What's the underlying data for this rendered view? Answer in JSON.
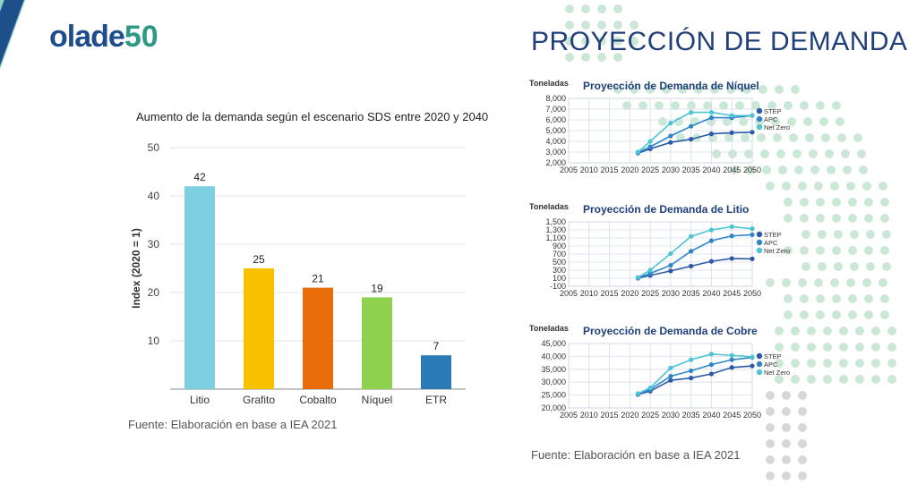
{
  "page": {
    "title": "PROYECCIÓN DE DEMANDA",
    "logo_text": "olade",
    "logo_anniv": "50",
    "source_left": "Fuente: Elaboración en base a IEA 2021",
    "source_right": "Fuente: Elaboración en base a IEA 2021",
    "colors": {
      "title": "#1f3f7a",
      "stripe_teal": "#8fd0c6",
      "stripe_blue": "#1f4f8a",
      "dots": "#b9e0c8"
    }
  },
  "chart_data": [
    {
      "type": "bar",
      "title": "Aumento de la demanda según el escenario SDS entre 2020 y 2040",
      "ylabel": "Index (2020 = 1)",
      "xlabel": "",
      "categories": [
        "Litio",
        "Grafito",
        "Cobalto",
        "Níquel",
        "ETR"
      ],
      "values": [
        42,
        25,
        21,
        19,
        7
      ],
      "data_labels": [
        "42",
        "25",
        "21",
        "19",
        "7"
      ],
      "colors": [
        "#7ecfe0",
        "#f7c100",
        "#e86c0a",
        "#8fd14f",
        "#2a7bb5"
      ],
      "ylim": [
        0,
        50
      ],
      "yticks": [
        "10",
        "20",
        "30",
        "40",
        "50"
      ],
      "grid": true
    },
    {
      "type": "line",
      "title": "Proyección de Demanda de Níquel",
      "ylabel": "Toneladas",
      "x": [
        2022,
        2025,
        2030,
        2035,
        2040,
        2045,
        2050
      ],
      "xticks": [
        "2005",
        "2010",
        "2015",
        "2020",
        "2025",
        "2030",
        "2035",
        "2040",
        "2045",
        "2050"
      ],
      "ylim": [
        2000,
        8000
      ],
      "yticks": [
        "2,000",
        "3,000",
        "4,000",
        "5,000",
        "6,000",
        "7,000",
        "8,000"
      ],
      "legend_position": "right",
      "series": [
        {
          "name": "STEP",
          "color": "#2a5aa8",
          "values": [
            2900,
            3300,
            3900,
            4200,
            4700,
            4800,
            4850
          ]
        },
        {
          "name": "APC",
          "color": "#2e86c9",
          "values": [
            2950,
            3500,
            4500,
            5400,
            6200,
            6200,
            6400
          ]
        },
        {
          "name": "Net Zero",
          "color": "#4cc4d4",
          "values": [
            3000,
            4000,
            5700,
            6700,
            6700,
            6400,
            6400
          ]
        }
      ]
    },
    {
      "type": "line",
      "title": "Proyección de Demanda de Litio",
      "ylabel": "Toneladas",
      "x": [
        2022,
        2025,
        2030,
        2035,
        2040,
        2045,
        2050
      ],
      "xticks": [
        "2005",
        "2010",
        "2015",
        "2020",
        "2025",
        "2030",
        "2035",
        "2040",
        "2045",
        "2050"
      ],
      "ylim": [
        -100,
        1500
      ],
      "yticks": [
        "-100",
        "100",
        "300",
        "500",
        "700",
        "900",
        "1,100",
        "1,300",
        "1,500"
      ],
      "legend_position": "right",
      "series": [
        {
          "name": "STEP",
          "color": "#2a5aa8",
          "values": [
            100,
            170,
            280,
            400,
            520,
            590,
            580
          ]
        },
        {
          "name": "APC",
          "color": "#2e86c9",
          "values": [
            110,
            220,
            420,
            770,
            1030,
            1150,
            1180
          ]
        },
        {
          "name": "Net Zero",
          "color": "#4cc4d4",
          "values": [
            120,
            300,
            710,
            1140,
            1300,
            1380,
            1330
          ]
        }
      ]
    },
    {
      "type": "line",
      "title": "Proyección de Demanda de Cobre",
      "ylabel": "Toneladas",
      "x": [
        2022,
        2025,
        2030,
        2035,
        2040,
        2045,
        2050
      ],
      "xticks": [
        "2005",
        "2010",
        "2015",
        "2020",
        "2025",
        "2030",
        "2035",
        "2040",
        "2045",
        "2050"
      ],
      "ylim": [
        20000,
        45000
      ],
      "yticks": [
        "20,000",
        "25,000",
        "30,000",
        "35,000",
        "40,000",
        "45,000"
      ],
      "legend_position": "right",
      "series": [
        {
          "name": "STEP",
          "color": "#2a5aa8",
          "values": [
            25200,
            26500,
            30700,
            31600,
            33200,
            35700,
            36300
          ]
        },
        {
          "name": "APC",
          "color": "#2e86c9",
          "values": [
            25400,
            27200,
            32300,
            34400,
            36800,
            38700,
            39600
          ]
        },
        {
          "name": "Net Zero",
          "color": "#4cc4d4",
          "values": [
            25600,
            27800,
            35500,
            38700,
            40900,
            40400,
            39800
          ]
        }
      ]
    }
  ]
}
